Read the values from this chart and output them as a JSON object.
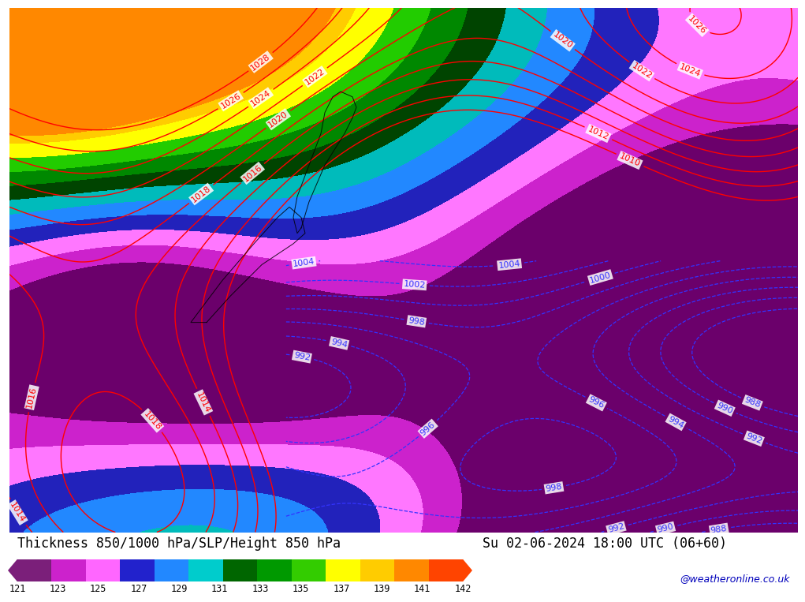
{
  "title_left": "Thickness 850/1000 hPa/SLP/Height 850 hPa",
  "title_right": "Su 02-06-2024 18:00 UTC (06+60)",
  "colorbar_labels": [
    "121",
    "123",
    "125",
    "127",
    "129",
    "131",
    "133",
    "135",
    "137",
    "139",
    "141",
    "142"
  ],
  "colorbar_colors": [
    "#7B1F7A",
    "#CC22CC",
    "#FF66FF",
    "#2222CC",
    "#2288FF",
    "#00CCCC",
    "#006600",
    "#009900",
    "#33CC00",
    "#FFFF00",
    "#FFCC00",
    "#FF8800",
    "#FF4400"
  ],
  "bottom_bar_bg": "#FFFFFF",
  "map_border_color": "#008800",
  "fig_width": 10.0,
  "fig_height": 7.33,
  "watermark": "@weatheronline.co.uk",
  "watermark_color": "#0000BB",
  "title_fontsize": 12,
  "watermark_fontsize": 9
}
